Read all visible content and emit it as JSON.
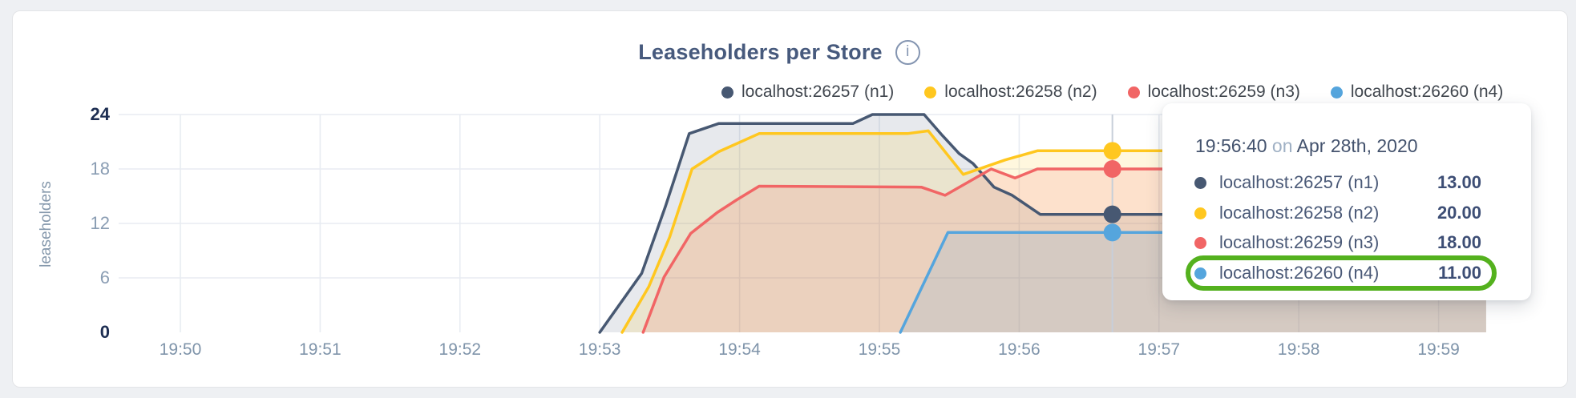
{
  "chart": {
    "title": "Leaseholders per Store",
    "y_axis_label": "leaseholders"
  },
  "legend": {
    "items": [
      {
        "label": "localhost:26257 (n1)",
        "color": "#475872"
      },
      {
        "label": "localhost:26258 (n2)",
        "color": "#ffc71f"
      },
      {
        "label": "localhost:26259 (n3)",
        "color": "#f16565"
      },
      {
        "label": "localhost:26260 (n4)",
        "color": "#55a5dd"
      }
    ]
  },
  "tooltip": {
    "time": "19:56:40",
    "on_word": "on",
    "date": "Apr 28th, 2020",
    "highlight_color": "#54b11e",
    "rows": [
      {
        "label": "localhost:26257 (n1)",
        "value": "13.00",
        "color": "#475872",
        "highlighted": false
      },
      {
        "label": "localhost:26258 (n2)",
        "value": "20.00",
        "color": "#ffc71f",
        "highlighted": false
      },
      {
        "label": "localhost:26259 (n3)",
        "value": "18.00",
        "color": "#f16565",
        "highlighted": false
      },
      {
        "label": "localhost:26260 (n4)",
        "value": "11.00",
        "color": "#55a5dd",
        "highlighted": true
      }
    ]
  },
  "chart_data": {
    "type": "area",
    "title": "Leaseholders per Store",
    "ylabel": "leaseholders",
    "xlabel": "",
    "x_unit": "minute of hour, times shown as 19:MM",
    "x_ticks": [
      "19:50",
      "19:51",
      "19:52",
      "19:53",
      "19:54",
      "19:55",
      "19:56",
      "19:57",
      "19:58",
      "19:59"
    ],
    "y_ticks": [
      {
        "value": 24,
        "emphasis": true
      },
      {
        "value": 18,
        "emphasis": false
      },
      {
        "value": 12,
        "emphasis": false
      },
      {
        "value": 6,
        "emphasis": false
      },
      {
        "value": 0,
        "emphasis": true
      }
    ],
    "ylim": [
      0,
      24
    ],
    "xlim_minutes": [
      49.55,
      59.5
    ],
    "grid": true,
    "legend_position": "top",
    "grid_color": "#e8ecf2",
    "hover_line_color": "#c7cfd9",
    "series": [
      {
        "name": "localhost:26257 (n1)",
        "color": "#475872",
        "fill_opacity": 0.13,
        "points": [
          [
            53.0,
            0
          ],
          [
            53.3,
            6.5
          ],
          [
            53.47,
            13.9
          ],
          [
            53.64,
            21.9
          ],
          [
            53.85,
            23
          ],
          [
            54.81,
            23
          ],
          [
            54.95,
            24
          ],
          [
            55.32,
            24
          ],
          [
            55.45,
            21.7
          ],
          [
            55.57,
            19.7
          ],
          [
            55.67,
            18.6
          ],
          [
            55.82,
            16
          ],
          [
            55.95,
            15.1
          ],
          [
            56.15,
            13
          ],
          [
            59.34,
            13
          ]
        ]
      },
      {
        "name": "localhost:26258 (n2)",
        "color": "#ffc71f",
        "fill_opacity": 0.15,
        "points": [
          [
            53.16,
            0
          ],
          [
            53.35,
            5
          ],
          [
            53.5,
            10.5
          ],
          [
            53.66,
            18
          ],
          [
            53.85,
            19.9
          ],
          [
            54.14,
            21.9
          ],
          [
            55.2,
            21.9
          ],
          [
            55.35,
            22.2
          ],
          [
            55.6,
            17.4
          ],
          [
            55.9,
            19
          ],
          [
            56.13,
            20
          ],
          [
            59.34,
            20
          ]
        ]
      },
      {
        "name": "localhost:26259 (n3)",
        "color": "#f16565",
        "fill_opacity": 0.15,
        "points": [
          [
            53.31,
            0
          ],
          [
            53.46,
            6.1
          ],
          [
            53.65,
            10.9
          ],
          [
            53.84,
            13.2
          ],
          [
            53.98,
            14.6
          ],
          [
            54.14,
            16.1
          ],
          [
            55.3,
            16
          ],
          [
            55.47,
            15.1
          ],
          [
            55.8,
            18
          ],
          [
            55.97,
            17
          ],
          [
            56.13,
            18
          ],
          [
            59.34,
            18
          ]
        ]
      },
      {
        "name": "localhost:26260 (n4)",
        "color": "#55a5dd",
        "fill_opacity": 0.14,
        "points": [
          [
            55.15,
            0
          ],
          [
            55.49,
            11
          ],
          [
            59.34,
            11
          ]
        ]
      }
    ],
    "hover": {
      "time_label": "19:56:40",
      "time_minutes": 56.6667,
      "values": [
        13,
        20,
        18,
        11
      ]
    }
  }
}
